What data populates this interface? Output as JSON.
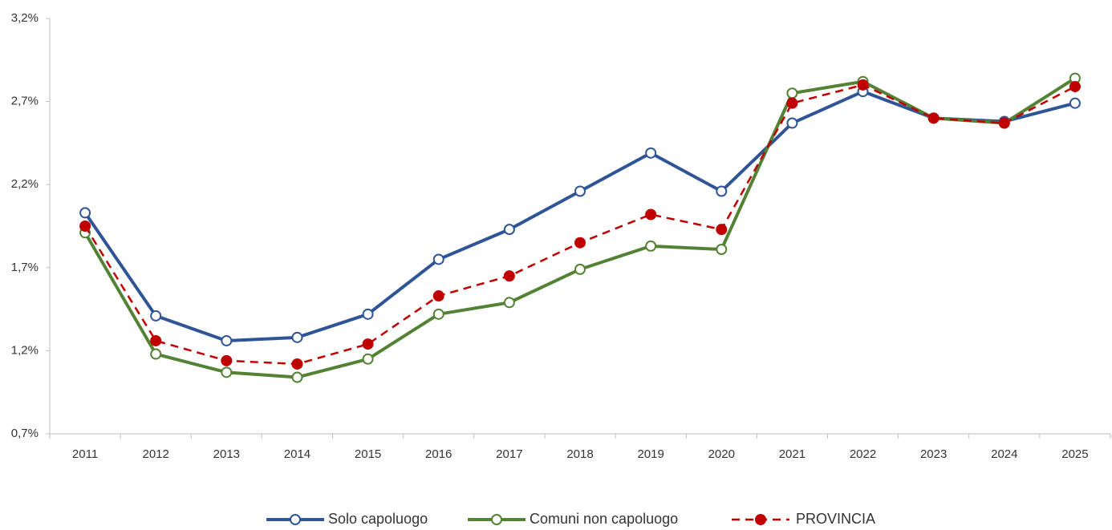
{
  "chart_data": {
    "type": "line",
    "categories": [
      "2011",
      "2012",
      "2013",
      "2014",
      "2015",
      "2016",
      "2017",
      "2018",
      "2019",
      "2020",
      "2021",
      "2022",
      "2023",
      "2024",
      "2025"
    ],
    "series": [
      {
        "name": "Solo capoluogo",
        "color": "#2f5597",
        "marker": "open",
        "dashed": false,
        "values": [
          2.03,
          1.41,
          1.26,
          1.28,
          1.42,
          1.75,
          1.93,
          2.16,
          2.39,
          2.16,
          2.57,
          2.76,
          2.6,
          2.58,
          2.69
        ]
      },
      {
        "name": "Comuni non capoluogo",
        "color": "#548235",
        "marker": "open",
        "dashed": false,
        "values": [
          1.91,
          1.18,
          1.07,
          1.04,
          1.15,
          1.42,
          1.49,
          1.69,
          1.83,
          1.81,
          2.75,
          2.82,
          2.6,
          2.57,
          2.84
        ]
      },
      {
        "name": "PROVINCIA",
        "color": "#c00000",
        "marker": "filled",
        "dashed": true,
        "values": [
          1.95,
          1.26,
          1.14,
          1.12,
          1.24,
          1.53,
          1.65,
          1.85,
          2.02,
          1.93,
          2.69,
          2.8,
          2.6,
          2.57,
          2.79
        ]
      }
    ],
    "ylim": [
      0.7,
      3.2
    ],
    "yticks": [
      {
        "value": 0.7,
        "label": "0,7%"
      },
      {
        "value": 1.2,
        "label": "1,2%"
      },
      {
        "value": 1.7,
        "label": "1,7%"
      },
      {
        "value": 2.2,
        "label": "2,2%"
      },
      {
        "value": 2.7,
        "label": "2,7%"
      },
      {
        "value": 3.2,
        "label": "3,2%"
      }
    ],
    "grid": false,
    "legend": "bottom"
  }
}
